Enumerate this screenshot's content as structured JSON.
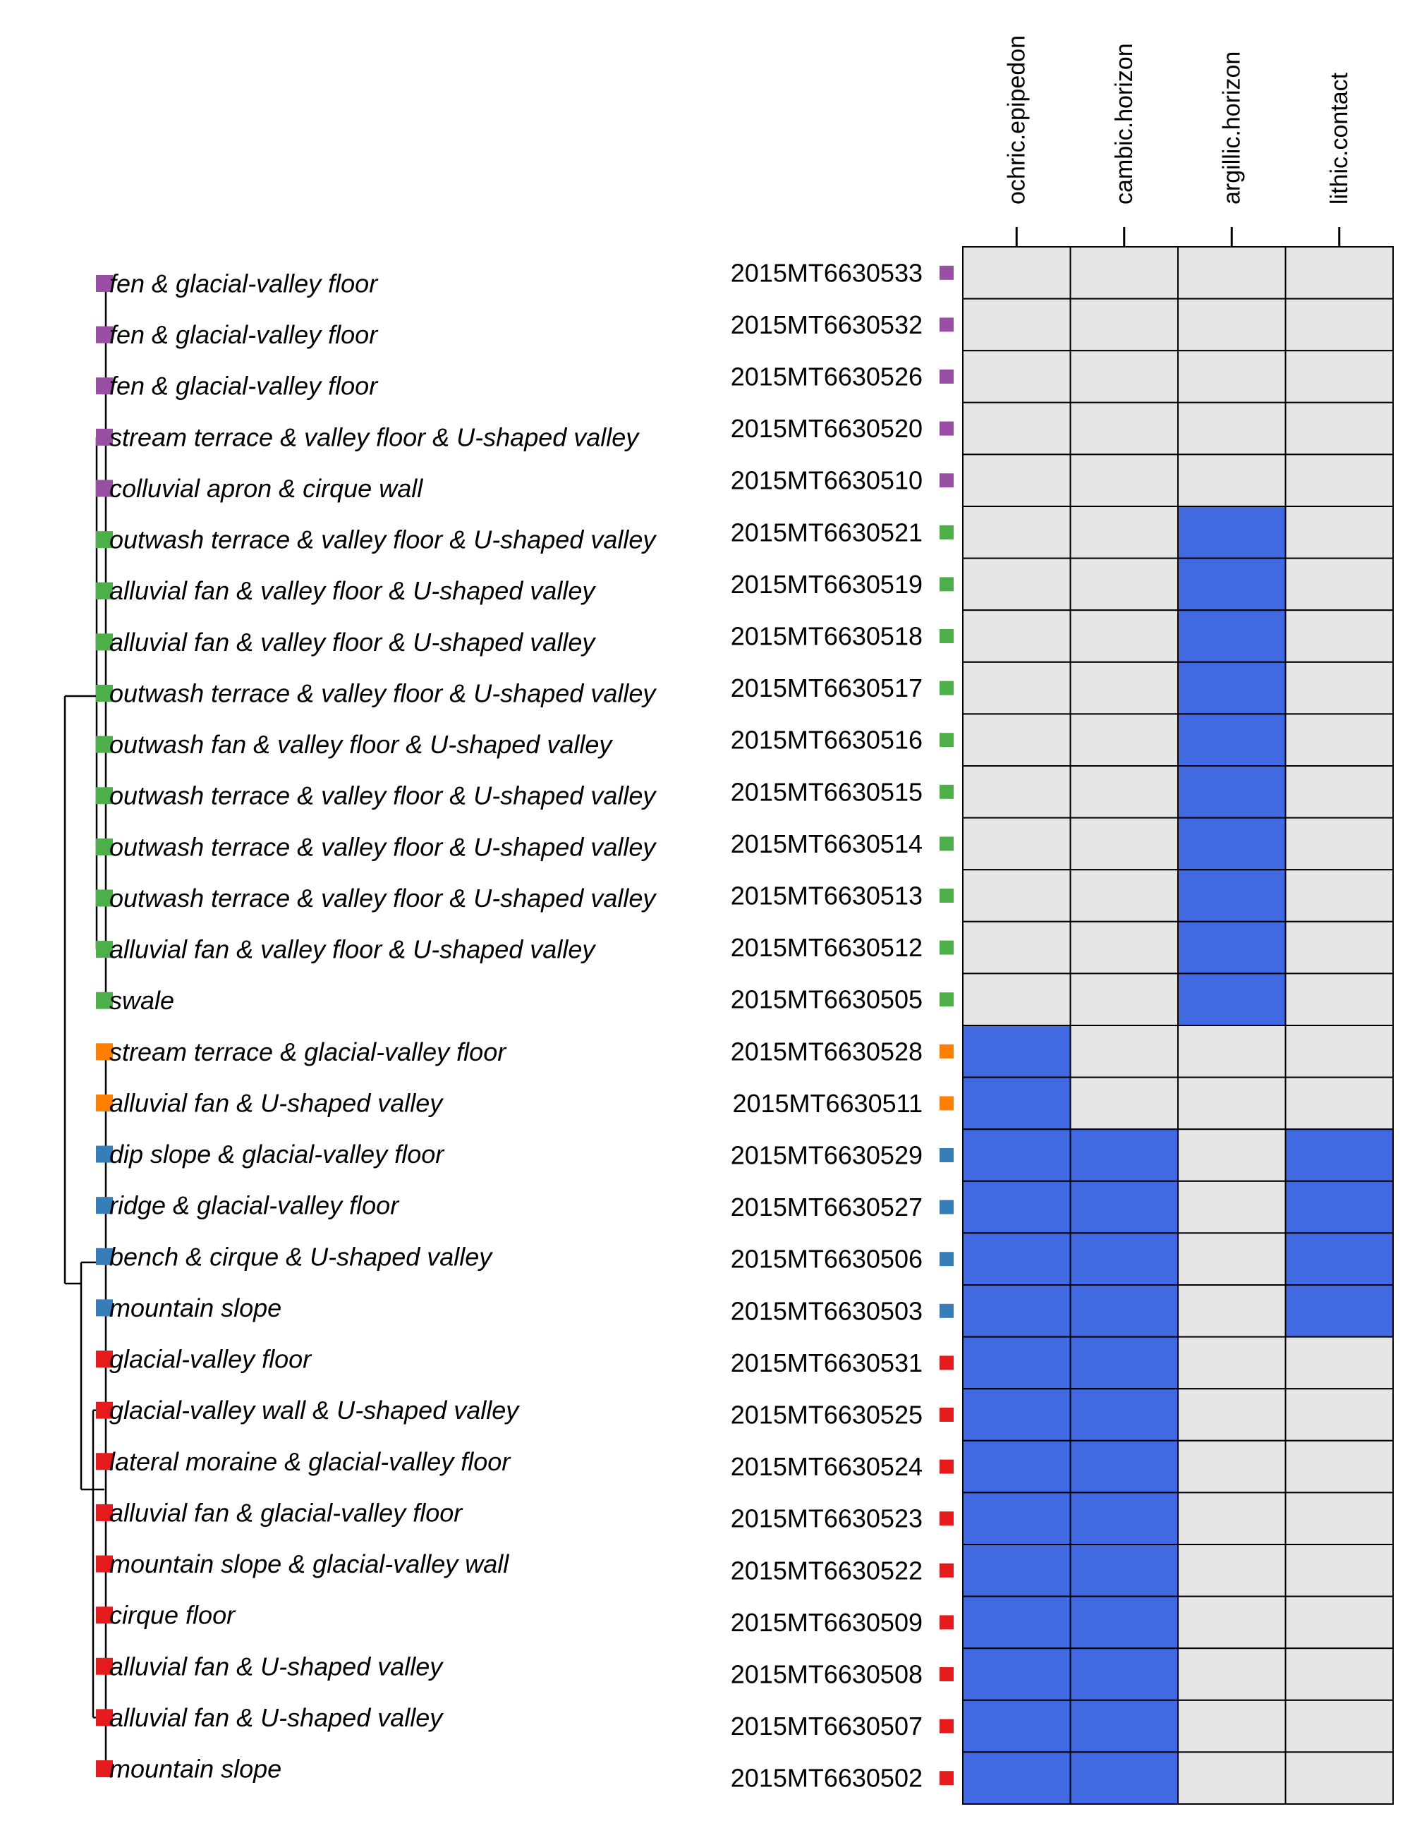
{
  "chart_data": {
    "type": "heatmap",
    "title": "",
    "columns": [
      "ochric.epipedon",
      "cambic.horizon",
      "argillic.horizon",
      "lithic.contact"
    ],
    "colors": {
      "present": "#4169E1",
      "absent": "#E6E6E6",
      "group_purple": "#984EA3",
      "group_green": "#4DAF4A",
      "group_orange": "#FF7F00",
      "group_blue": "#377EB8",
      "group_red": "#E41A1C"
    },
    "rows": [
      {
        "id": "2015MT6630533",
        "landform": "fen & glacial-valley floor",
        "group": "purple",
        "values": [
          0,
          0,
          0,
          0
        ]
      },
      {
        "id": "2015MT6630532",
        "landform": "fen & glacial-valley floor",
        "group": "purple",
        "values": [
          0,
          0,
          0,
          0
        ]
      },
      {
        "id": "2015MT6630526",
        "landform": "fen & glacial-valley floor",
        "group": "purple",
        "values": [
          0,
          0,
          0,
          0
        ]
      },
      {
        "id": "2015MT6630520",
        "landform": "stream terrace & valley floor & U-shaped valley",
        "group": "purple",
        "values": [
          0,
          0,
          0,
          0
        ]
      },
      {
        "id": "2015MT6630510",
        "landform": "colluvial apron & cirque wall",
        "group": "purple",
        "values": [
          0,
          0,
          0,
          0
        ]
      },
      {
        "id": "2015MT6630521",
        "landform": "outwash terrace & valley floor & U-shaped valley",
        "group": "green",
        "values": [
          0,
          0,
          1,
          0
        ]
      },
      {
        "id": "2015MT6630519",
        "landform": "alluvial fan & valley floor & U-shaped valley",
        "group": "green",
        "values": [
          0,
          0,
          1,
          0
        ]
      },
      {
        "id": "2015MT6630518",
        "landform": "alluvial fan & valley floor & U-shaped valley",
        "group": "green",
        "values": [
          0,
          0,
          1,
          0
        ]
      },
      {
        "id": "2015MT6630517",
        "landform": "outwash terrace & valley floor & U-shaped valley",
        "group": "green",
        "values": [
          0,
          0,
          1,
          0
        ]
      },
      {
        "id": "2015MT6630516",
        "landform": "outwash fan & valley floor & U-shaped valley",
        "group": "green",
        "values": [
          0,
          0,
          1,
          0
        ]
      },
      {
        "id": "2015MT6630515",
        "landform": "outwash terrace & valley floor & U-shaped valley",
        "group": "green",
        "values": [
          0,
          0,
          1,
          0
        ]
      },
      {
        "id": "2015MT6630514",
        "landform": "outwash terrace & valley floor & U-shaped valley",
        "group": "green",
        "values": [
          0,
          0,
          1,
          0
        ]
      },
      {
        "id": "2015MT6630513",
        "landform": "outwash terrace & valley floor & U-shaped valley",
        "group": "green",
        "values": [
          0,
          0,
          1,
          0
        ]
      },
      {
        "id": "2015MT6630512",
        "landform": "alluvial fan & valley floor & U-shaped valley",
        "group": "green",
        "values": [
          0,
          0,
          1,
          0
        ]
      },
      {
        "id": "2015MT6630505",
        "landform": "swale",
        "group": "green",
        "values": [
          0,
          0,
          1,
          0
        ]
      },
      {
        "id": "2015MT6630528",
        "landform": "stream terrace & glacial-valley floor",
        "group": "orange",
        "values": [
          1,
          0,
          0,
          0
        ]
      },
      {
        "id": "2015MT6630511",
        "landform": "alluvial fan & U-shaped valley",
        "group": "orange",
        "values": [
          1,
          0,
          0,
          0
        ]
      },
      {
        "id": "2015MT6630529",
        "landform": "dip slope & glacial-valley floor",
        "group": "blue",
        "values": [
          1,
          1,
          0,
          1
        ]
      },
      {
        "id": "2015MT6630527",
        "landform": "ridge & glacial-valley floor",
        "group": "blue",
        "values": [
          1,
          1,
          0,
          1
        ]
      },
      {
        "id": "2015MT6630506",
        "landform": "bench & cirque & U-shaped valley",
        "group": "blue",
        "values": [
          1,
          1,
          0,
          1
        ]
      },
      {
        "id": "2015MT6630503",
        "landform": "mountain slope",
        "group": "blue",
        "values": [
          1,
          1,
          0,
          1
        ]
      },
      {
        "id": "2015MT6630531",
        "landform": "glacial-valley floor",
        "group": "red",
        "values": [
          1,
          1,
          0,
          0
        ]
      },
      {
        "id": "2015MT6630525",
        "landform": "glacial-valley wall & U-shaped valley",
        "group": "red",
        "values": [
          1,
          1,
          0,
          0
        ]
      },
      {
        "id": "2015MT6630524",
        "landform": "lateral moraine & glacial-valley floor",
        "group": "red",
        "values": [
          1,
          1,
          0,
          0
        ]
      },
      {
        "id": "2015MT6630523",
        "landform": "alluvial fan & glacial-valley floor",
        "group": "red",
        "values": [
          1,
          1,
          0,
          0
        ]
      },
      {
        "id": "2015MT6630522",
        "landform": "mountain slope & glacial-valley wall",
        "group": "red",
        "values": [
          1,
          1,
          0,
          0
        ]
      },
      {
        "id": "2015MT6630509",
        "landform": "cirque floor",
        "group": "red",
        "values": [
          1,
          1,
          0,
          0
        ]
      },
      {
        "id": "2015MT6630508",
        "landform": "alluvial fan & U-shaped valley",
        "group": "red",
        "values": [
          1,
          1,
          0,
          0
        ]
      },
      {
        "id": "2015MT6630507",
        "landform": "alluvial fan & U-shaped valley",
        "group": "red",
        "values": [
          1,
          1,
          0,
          0
        ]
      },
      {
        "id": "2015MT6630502",
        "landform": "mountain slope",
        "group": "red",
        "values": [
          1,
          1,
          0,
          0
        ]
      }
    ]
  }
}
